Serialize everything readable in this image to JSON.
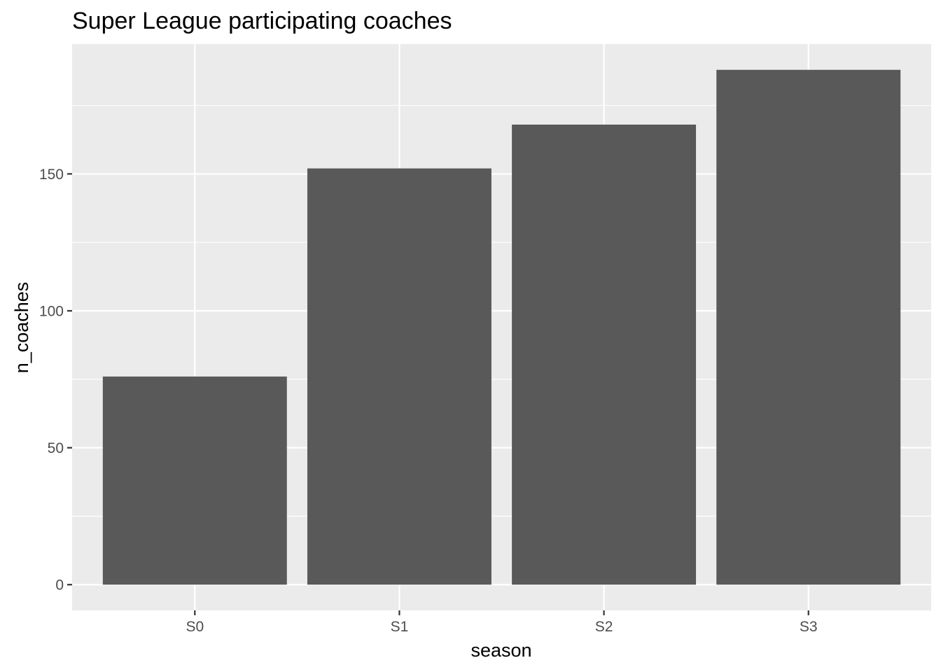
{
  "chart_data": {
    "type": "bar",
    "title": "Super League participating coaches",
    "xlabel": "season",
    "ylabel": "n_coaches",
    "categories": [
      "S0",
      "S1",
      "S2",
      "S3"
    ],
    "values": [
      76,
      152,
      168,
      188
    ],
    "ylim": [
      -9.4,
      197.4
    ],
    "yticks": [
      0,
      50,
      100,
      150
    ],
    "ytick_labels": [
      "0",
      "50",
      "100",
      "150"
    ],
    "grid": true,
    "legend": "none"
  },
  "colors": {
    "panel_background": "#ebebeb",
    "grid_line": "#ffffff",
    "bar_fill": "#595959",
    "tick_label": "#4d4d4d",
    "tick_mark": "#333333",
    "text": "#000000"
  }
}
